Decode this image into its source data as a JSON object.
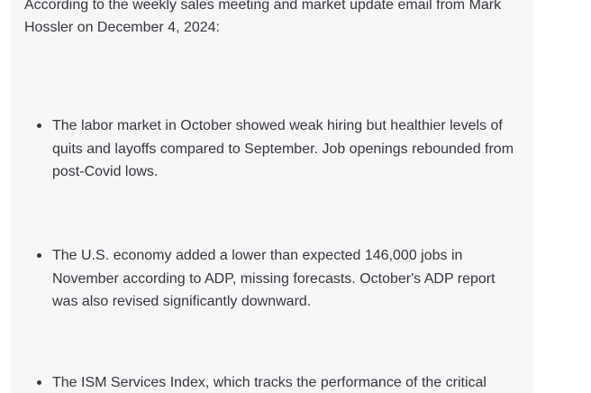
{
  "intro": "According to the weekly sales meeting and market update email from Mark Hossler on December 4, 2024:",
  "bullets": [
    "The labor market in October showed weak hiring but healthier levels of quits and layoffs compared to September. Job openings rebounded from post-Covid lows.",
    "The U.S. economy added a lower than expected 146,000 jobs in November according to ADP, missing forecasts. October's ADP report was also revised significantly downward.",
    "The ISM Services Index, which tracks the performance of the critical"
  ]
}
